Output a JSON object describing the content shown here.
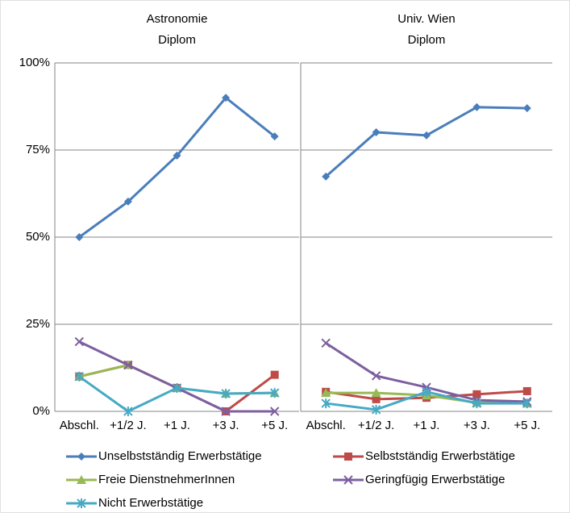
{
  "chart_data": [
    {
      "type": "line",
      "title": "Astronomie\nDiplom",
      "categories": [
        "Abschl.",
        "+1/2 J.",
        "+1 J.",
        "+3 J.",
        "+5 J."
      ],
      "ylim": [
        0,
        100
      ],
      "yticks": [
        {
          "value": 0,
          "label": "0%"
        },
        {
          "value": 25,
          "label": "25%"
        },
        {
          "value": 50,
          "label": "50%"
        },
        {
          "value": 75,
          "label": "75%"
        },
        {
          "value": 100,
          "label": "100%"
        }
      ],
      "grid": true,
      "series": [
        {
          "name": "Unselbstständig Erwerbstätige",
          "color": "#4a7ebb",
          "marker": "diamond",
          "values": [
            50,
            60.2,
            73.4,
            90,
            78.9
          ]
        },
        {
          "name": "Selbstständig Erwerbstätige",
          "color": "#be4b48",
          "marker": "square",
          "values": [
            10,
            13.3,
            6.7,
            0,
            10.5
          ]
        },
        {
          "name": "Freie DienstnehmerInnen",
          "color": "#98b954",
          "marker": "triangle",
          "values": [
            10,
            13.3,
            6.7,
            5.1,
            5.3
          ]
        },
        {
          "name": "Geringfügig Erwerbstätige",
          "color": "#7d5fa0",
          "marker": "x",
          "values": [
            20,
            13.3,
            6.7,
            0,
            0
          ]
        },
        {
          "name": "Nicht Erwerbstätige",
          "color": "#46aac5",
          "marker": "star",
          "values": [
            10,
            0,
            6.7,
            5.1,
            5.3
          ]
        }
      ]
    },
    {
      "type": "line",
      "title": "Univ. Wien\nDiplom",
      "categories": [
        "Abschl.",
        "+1/2 J.",
        "+1 J.",
        "+3 J.",
        "+5 J."
      ],
      "ylim": [
        0,
        100
      ],
      "yticks": [
        0,
        25,
        50,
        75,
        100
      ],
      "grid": true,
      "series": [
        {
          "name": "Unselbstständig Erwerbstätige",
          "color": "#4a7ebb",
          "marker": "diamond",
          "values": [
            67.4,
            80.1,
            79.2,
            87.3,
            87
          ]
        },
        {
          "name": "Selbstständig Erwerbstätige",
          "color": "#be4b48",
          "marker": "square",
          "values": [
            5.6,
            3.5,
            3.9,
            4.9,
            5.8
          ]
        },
        {
          "name": "Freie DienstnehmerInnen",
          "color": "#98b954",
          "marker": "triangle",
          "values": [
            5.3,
            5.3,
            4.6,
            2.5,
            2.3
          ]
        },
        {
          "name": "Geringfügig Erwerbstätige",
          "color": "#7d5fa0",
          "marker": "x",
          "values": [
            19.6,
            10.2,
            6.9,
            3.2,
            2.8
          ]
        },
        {
          "name": "Nicht Erwerbstätige",
          "color": "#46aac5",
          "marker": "star",
          "values": [
            2.3,
            0.5,
            5.6,
            2.3,
            2.3
          ]
        }
      ]
    }
  ]
}
